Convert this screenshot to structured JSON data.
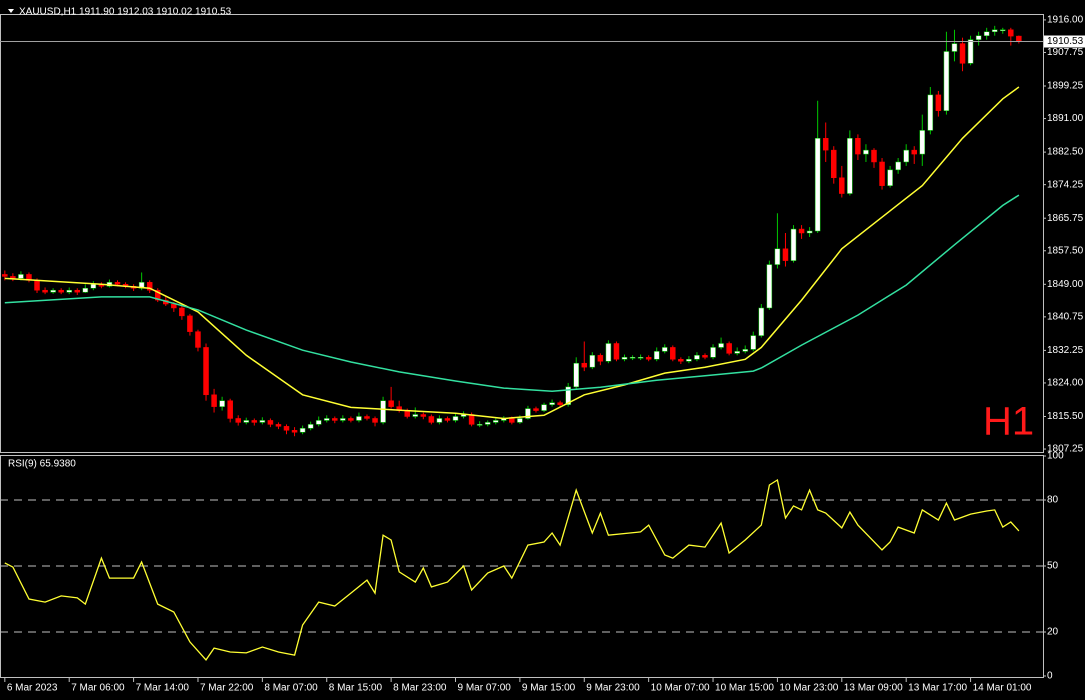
{
  "chart_data": [
    {
      "type": "candlestick",
      "title": "XAUUSD,H1  1911.90 1912.03 1910.02 1910.53",
      "watermark": "H1",
      "up_color": "#ffffff",
      "up_wick_color": "#00c800",
      "down_color": "#ff0000",
      "price_line_color": "#a0a0a0",
      "xlim": [
        -0.6,
        129
      ],
      "ylim": [
        1806.5,
        1917.5
      ],
      "yticks": [
        {
          "value": 1916,
          "label": "1916.00"
        },
        {
          "value": 1907.75,
          "label": "1907.75"
        },
        {
          "value": 1899.25,
          "label": "1899.25"
        },
        {
          "value": 1891,
          "label": "1891.00"
        },
        {
          "value": 1882.5,
          "label": "1882.50"
        },
        {
          "value": 1874.25,
          "label": "1874.25"
        },
        {
          "value": 1865.75,
          "label": "1865.75"
        },
        {
          "value": 1857.5,
          "label": "1857.50"
        },
        {
          "value": 1849,
          "label": "1849.00"
        },
        {
          "value": 1840.75,
          "label": "1840.75"
        },
        {
          "value": 1832.25,
          "label": "1832.25"
        },
        {
          "value": 1824,
          "label": "1824.00"
        },
        {
          "value": 1815.5,
          "label": "1815.50"
        },
        {
          "value": 1807.25,
          "label": "1807.25"
        }
      ],
      "xticks": [
        {
          "value": 0,
          "label": "6 Mar 2023"
        },
        {
          "value": 8,
          "label": "7 Mar 06:00"
        },
        {
          "value": 16,
          "label": "7 Mar 14:00"
        },
        {
          "value": 24,
          "label": "7 Mar 22:00"
        },
        {
          "value": 32,
          "label": "8 Mar 07:00"
        },
        {
          "value": 40,
          "label": "8 Mar 15:00"
        },
        {
          "value": 48,
          "label": "8 Mar 23:00"
        },
        {
          "value": 56,
          "label": "9 Mar 07:00"
        },
        {
          "value": 64,
          "label": "9 Mar 15:00"
        },
        {
          "value": 72,
          "label": "9 Mar 23:00"
        },
        {
          "value": 80,
          "label": "10 Mar 07:00"
        },
        {
          "value": 88,
          "label": "10 Mar 15:00"
        },
        {
          "value": 96,
          "label": "10 Mar 23:00"
        },
        {
          "value": 104,
          "label": "13 Mar 09:00"
        },
        {
          "value": 112,
          "label": "13 Mar 17:00"
        },
        {
          "value": 120,
          "label": "14 Mar 01:00"
        }
      ],
      "candles": [
        [
          1851.5,
          1852.5,
          1850,
          1851
        ],
        [
          1851,
          1851.8,
          1849.8,
          1850.5
        ],
        [
          1850.5,
          1852.3,
          1850,
          1851.5
        ],
        [
          1851.5,
          1852,
          1849.5,
          1850
        ],
        [
          1850,
          1850.5,
          1846.8,
          1847.5
        ],
        [
          1847.5,
          1848.2,
          1846.5,
          1847
        ],
        [
          1847,
          1848,
          1846.6,
          1847.5
        ],
        [
          1847.5,
          1848,
          1846.5,
          1847
        ],
        [
          1847,
          1848.2,
          1846.5,
          1847.5
        ],
        [
          1847.5,
          1848,
          1846.3,
          1847
        ],
        [
          1847,
          1849,
          1846.8,
          1848
        ],
        [
          1848,
          1849.8,
          1847.5,
          1849
        ],
        [
          1849,
          1849.5,
          1848,
          1848.5
        ],
        [
          1848.5,
          1850.2,
          1848.2,
          1849.5
        ],
        [
          1849.5,
          1850,
          1848.5,
          1849
        ],
        [
          1849,
          1849.5,
          1848,
          1848.5
        ],
        [
          1848.5,
          1849,
          1847.3,
          1848
        ],
        [
          1848,
          1852,
          1847.5,
          1849.5
        ],
        [
          1849.5,
          1850,
          1846.8,
          1847.5
        ],
        [
          1847.5,
          1848,
          1844.5,
          1845
        ],
        [
          1845,
          1846,
          1843.5,
          1844
        ],
        [
          1844,
          1844.5,
          1842,
          1843
        ],
        [
          1843,
          1843.5,
          1840,
          1841
        ],
        [
          1841,
          1841.5,
          1836,
          1837
        ],
        [
          1837,
          1837.5,
          1832,
          1833
        ],
        [
          1833,
          1834,
          1819.5,
          1821
        ],
        [
          1821,
          1822.5,
          1816.5,
          1818
        ],
        [
          1818,
          1820.5,
          1817,
          1819.5
        ],
        [
          1819.5,
          1820,
          1814,
          1815
        ],
        [
          1815,
          1815.8,
          1813.2,
          1814
        ],
        [
          1814,
          1815.2,
          1813.5,
          1814.5
        ],
        [
          1814.5,
          1815,
          1813.2,
          1814
        ],
        [
          1814,
          1815.3,
          1813.5,
          1814.5
        ],
        [
          1814.5,
          1815,
          1812.8,
          1813.5
        ],
        [
          1813.5,
          1814,
          1812.3,
          1813
        ],
        [
          1813,
          1813.5,
          1811,
          1812
        ],
        [
          1812,
          1812.8,
          1810.5,
          1811.5
        ],
        [
          1811.5,
          1813.2,
          1811,
          1812.5
        ],
        [
          1812.5,
          1814.2,
          1812,
          1813.5
        ],
        [
          1813.5,
          1815.5,
          1813,
          1814.5
        ],
        [
          1814.5,
          1815.8,
          1814,
          1815
        ],
        [
          1815,
          1815.5,
          1813.8,
          1814.5
        ],
        [
          1814.5,
          1815.8,
          1814,
          1815
        ],
        [
          1815,
          1815.5,
          1814,
          1814.5
        ],
        [
          1814.5,
          1816.5,
          1814,
          1815.5
        ],
        [
          1815.5,
          1816,
          1814.5,
          1815
        ],
        [
          1815,
          1815.5,
          1813,
          1814
        ],
        [
          1814,
          1820.5,
          1813.5,
          1819.5
        ],
        [
          1819.5,
          1823,
          1817.5,
          1818
        ],
        [
          1818,
          1819.5,
          1816.5,
          1817
        ],
        [
          1817,
          1817.5,
          1815,
          1815.5
        ],
        [
          1815.5,
          1817.8,
          1815,
          1816
        ],
        [
          1816,
          1816.5,
          1814.8,
          1815.5
        ],
        [
          1815.5,
          1816,
          1813.5,
          1814
        ],
        [
          1814,
          1815.8,
          1813.5,
          1815
        ],
        [
          1815,
          1815.5,
          1814,
          1814.5
        ],
        [
          1814.5,
          1816.2,
          1814,
          1815.5
        ],
        [
          1815.5,
          1816.8,
          1815,
          1816
        ],
        [
          1816,
          1816.5,
          1813,
          1813.5
        ],
        [
          1813.5,
          1814.3,
          1812.8,
          1813.5
        ],
        [
          1813.5,
          1814.5,
          1813,
          1814
        ],
        [
          1814,
          1815,
          1813.5,
          1814.5
        ],
        [
          1814.5,
          1815.6,
          1814,
          1815
        ],
        [
          1815,
          1815.5,
          1813.5,
          1814
        ],
        [
          1814,
          1815.8,
          1813.6,
          1815
        ],
        [
          1815,
          1818.2,
          1814.7,
          1817.5
        ],
        [
          1817.5,
          1818,
          1816.5,
          1817
        ],
        [
          1817,
          1819,
          1816.6,
          1818.5
        ],
        [
          1818.5,
          1819.8,
          1818,
          1819
        ],
        [
          1819,
          1819.5,
          1818,
          1818.5
        ],
        [
          1818.5,
          1824,
          1818,
          1823
        ],
        [
          1823,
          1830.5,
          1822.5,
          1829
        ],
        [
          1829,
          1834.5,
          1827,
          1828
        ],
        [
          1828,
          1831.8,
          1827.5,
          1831
        ],
        [
          1831,
          1831.5,
          1828.5,
          1829.5
        ],
        [
          1829.5,
          1834.8,
          1829,
          1834
        ],
        [
          1834,
          1834.5,
          1829.5,
          1830
        ],
        [
          1830,
          1831.2,
          1829.5,
          1830.5
        ],
        [
          1830.5,
          1831,
          1829.8,
          1830.5
        ],
        [
          1830.5,
          1831.2,
          1829.8,
          1830.5
        ],
        [
          1830.5,
          1831,
          1829.5,
          1830
        ],
        [
          1830,
          1833,
          1829.5,
          1832
        ],
        [
          1832,
          1833.8,
          1831.5,
          1833
        ],
        [
          1833,
          1833.5,
          1829.5,
          1830
        ],
        [
          1830,
          1830.5,
          1828.8,
          1829.5
        ],
        [
          1829.5,
          1830.8,
          1829,
          1830
        ],
        [
          1830,
          1831.8,
          1829.5,
          1831
        ],
        [
          1831,
          1831.5,
          1830,
          1830.5
        ],
        [
          1830.5,
          1833.8,
          1830,
          1833
        ],
        [
          1833,
          1835.5,
          1832.5,
          1834
        ],
        [
          1834,
          1834.5,
          1831,
          1831.5
        ],
        [
          1831.5,
          1833,
          1831,
          1832
        ],
        [
          1832,
          1833.5,
          1831.5,
          1832.5
        ],
        [
          1832.5,
          1837,
          1832,
          1836
        ],
        [
          1836,
          1844,
          1835.5,
          1843
        ],
        [
          1843,
          1855,
          1842.5,
          1854
        ],
        [
          1854,
          1867,
          1853,
          1858
        ],
        [
          1858,
          1862,
          1853.5,
          1855
        ],
        [
          1855,
          1864,
          1854.5,
          1863
        ],
        [
          1863,
          1864,
          1860.5,
          1862
        ],
        [
          1862,
          1863.5,
          1861,
          1862.5
        ],
        [
          1862.5,
          1895.5,
          1862,
          1886
        ],
        [
          1886,
          1890,
          1880,
          1883
        ],
        [
          1883,
          1884,
          1874.5,
          1876
        ],
        [
          1876,
          1879,
          1871,
          1872
        ],
        [
          1872,
          1888,
          1871.5,
          1886
        ],
        [
          1886,
          1887,
          1880.5,
          1882
        ],
        [
          1882,
          1884.5,
          1880,
          1883
        ],
        [
          1883,
          1883.5,
          1878.5,
          1880
        ],
        [
          1880,
          1881,
          1873,
          1874
        ],
        [
          1874,
          1879,
          1873.5,
          1878
        ],
        [
          1878,
          1881,
          1877,
          1880
        ],
        [
          1880,
          1884.5,
          1879,
          1883
        ],
        [
          1883,
          1884,
          1879.5,
          1882
        ],
        [
          1882,
          1892,
          1879,
          1888
        ],
        [
          1888,
          1899,
          1887,
          1897
        ],
        [
          1897,
          1898,
          1891.5,
          1893
        ],
        [
          1893,
          1913,
          1892,
          1908
        ],
        [
          1908,
          1913.5,
          1905.5,
          1910
        ],
        [
          1910,
          1911.5,
          1903,
          1905
        ],
        [
          1905,
          1912,
          1904.5,
          1911
        ],
        [
          1911,
          1913,
          1909.5,
          1912
        ],
        [
          1912,
          1914,
          1911,
          1913
        ],
        [
          1913,
          1914.5,
          1912,
          1913.5
        ],
        [
          1913.5,
          1914,
          1912.5,
          1913.5
        ],
        [
          1913.5,
          1914,
          1909.5,
          1911.9
        ],
        [
          1911.9,
          1912.03,
          1910.02,
          1910.53
        ]
      ],
      "series": [
        {
          "color": "#ffff33",
          "x": [
            0,
            12,
            18,
            24,
            30,
            37,
            43,
            50,
            56,
            62,
            67,
            72,
            77,
            82,
            87,
            92,
            94,
            99,
            104,
            109,
            114,
            119,
            124,
            126
          ],
          "values": [
            1850.5,
            1849,
            1848,
            1842,
            1831,
            1821,
            1817.8,
            1817,
            1816.3,
            1815,
            1815.8,
            1821,
            1823.5,
            1826.5,
            1828,
            1830,
            1833,
            1845,
            1858,
            1866,
            1874,
            1886,
            1896,
            1899
          ]
        },
        {
          "color": "#33e0a0",
          "x": [
            0,
            12,
            18,
            24,
            30,
            37,
            43,
            49,
            56,
            62,
            68,
            74,
            81,
            87,
            93,
            94,
            99,
            106,
            112,
            118,
            124,
            126
          ],
          "values": [
            1844.3,
            1845.8,
            1845.8,
            1842.5,
            1837.4,
            1832.3,
            1829.3,
            1826.8,
            1824.5,
            1822.7,
            1821.9,
            1822.9,
            1824.7,
            1825.8,
            1827,
            1827.8,
            1833.6,
            1841.2,
            1848.8,
            1859,
            1869,
            1871.6
          ]
        }
      ]
    },
    {
      "type": "line",
      "title": "RSI(9) 65.9380",
      "color": "#ffff33",
      "xlim": [
        -0.6,
        129
      ],
      "ylim": [
        0,
        100
      ],
      "yticks": [
        100,
        80,
        50,
        20,
        0
      ],
      "x": [
        0,
        1,
        3,
        5,
        7,
        9,
        10,
        12,
        13,
        16,
        17,
        19,
        21,
        23,
        25,
        26,
        28,
        30,
        32,
        34,
        36,
        37,
        39,
        41,
        43,
        45,
        46,
        47,
        48,
        49,
        51,
        52,
        53,
        55,
        57,
        58,
        60,
        62,
        63,
        65,
        67,
        68,
        69,
        71,
        73,
        74,
        75,
        79,
        80,
        82,
        83,
        85,
        87,
        89,
        90,
        92,
        94,
        95,
        96,
        97,
        98,
        99,
        100,
        101,
        102,
        104,
        105,
        106,
        109,
        110,
        111,
        113,
        114,
        116,
        117,
        118,
        120,
        122,
        123,
        124,
        125,
        126
      ],
      "values": [
        51.4,
        49.5,
        35,
        33.6,
        36.4,
        35.5,
        32.7,
        53.6,
        44.5,
        44.5,
        51.8,
        32.7,
        29.1,
        15.5,
        7.3,
        12.7,
        10.9,
        10.5,
        13.2,
        10.9,
        9.5,
        23.2,
        33.6,
        31.8,
        37.7,
        43.6,
        37.7,
        64,
        61.8,
        47.3,
        42.7,
        49.1,
        40.5,
        42.7,
        50,
        39.1,
        46.8,
        50,
        44.5,
        59.5,
        60.9,
        65,
        59.5,
        84.5,
        65,
        74,
        64,
        65.5,
        68.6,
        55,
        53.6,
        59.5,
        58.6,
        69.5,
        55.9,
        61.8,
        68.6,
        86.8,
        89.1,
        71.8,
        77.3,
        75.5,
        84.5,
        75.5,
        74.1,
        67.3,
        74.5,
        68.6,
        57.3,
        60.9,
        67.7,
        65,
        75.5,
        70.9,
        78.6,
        70.9,
        73.6,
        75,
        75.5,
        67.7,
        70,
        65.938
      ]
    }
  ]
}
